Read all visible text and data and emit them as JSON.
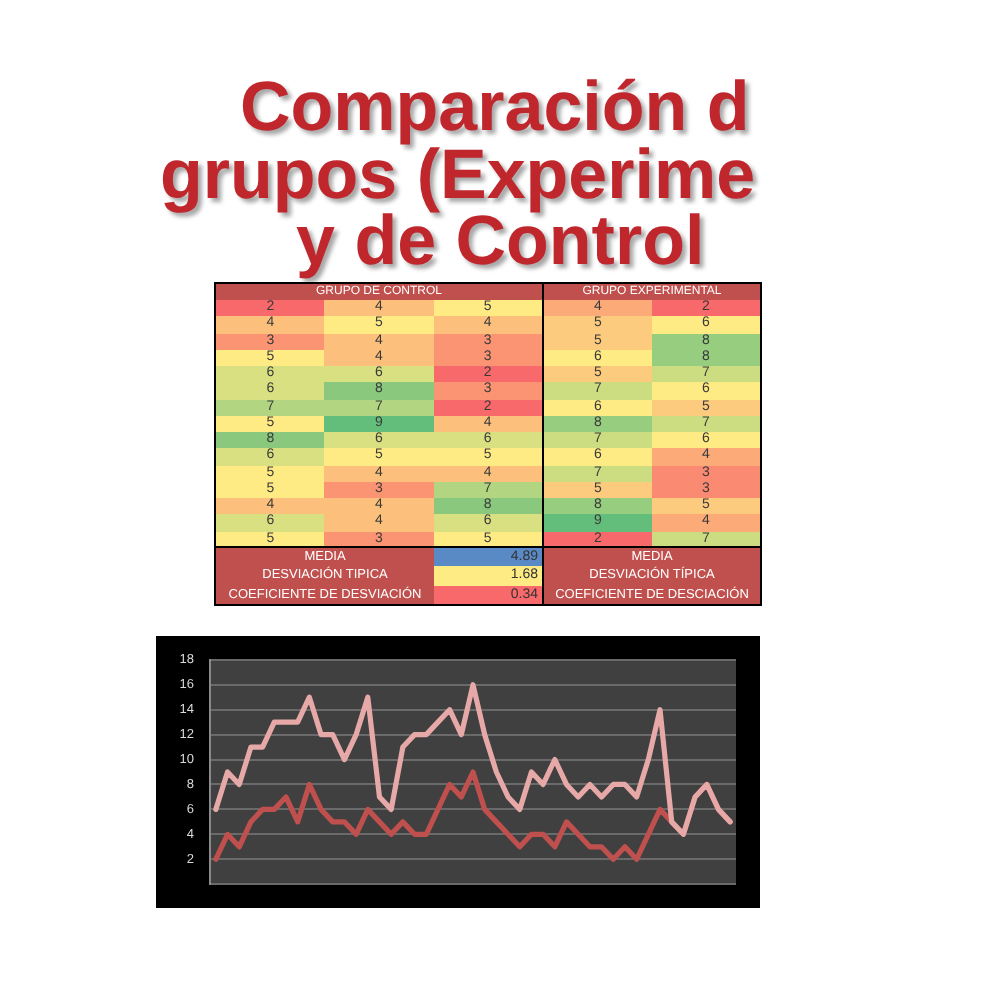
{
  "chart_data": [
    {
      "type": "other",
      "title": "Comparación d\ngrupos (Experime\ny de Control"
    },
    {
      "type": "heatmap",
      "title": "GRUPO DE CONTROL",
      "categories": [
        null,
        null,
        null
      ],
      "y_categories": [
        null,
        null,
        null,
        null,
        null,
        null,
        null,
        null,
        null,
        null,
        null,
        null,
        null,
        null,
        null
      ],
      "cells": [
        [
          2,
          4,
          5
        ],
        [
          4,
          5,
          4
        ],
        [
          3,
          4,
          3
        ],
        [
          5,
          4,
          3
        ],
        [
          6,
          6,
          2
        ],
        [
          6,
          8,
          3
        ],
        [
          7,
          7,
          2
        ],
        [
          5,
          9,
          4
        ],
        [
          8,
          6,
          6
        ],
        [
          6,
          5,
          5
        ],
        [
          5,
          4,
          4
        ],
        [
          5,
          3,
          7
        ],
        [
          4,
          4,
          8
        ],
        [
          6,
          4,
          6
        ],
        [
          5,
          3,
          5
        ]
      ],
      "data_labels": true
    },
    {
      "type": "heatmap",
      "title": "GRUPO EXPERIMENTAL",
      "categories": [
        null,
        null
      ],
      "y_categories": [
        null,
        null,
        null,
        null,
        null,
        null,
        null,
        null,
        null,
        null,
        null,
        null,
        null,
        null,
        null
      ],
      "cells": [
        [
          4,
          2
        ],
        [
          5,
          6
        ],
        [
          5,
          8
        ],
        [
          6,
          8
        ],
        [
          5,
          7
        ],
        [
          7,
          6
        ],
        [
          6,
          5
        ],
        [
          8,
          7
        ],
        [
          7,
          6
        ],
        [
          6,
          4
        ],
        [
          7,
          3
        ],
        [
          5,
          3
        ],
        [
          8,
          5
        ],
        [
          9,
          4
        ],
        [
          2,
          7
        ]
      ],
      "data_labels": true
    },
    {
      "type": "other",
      "categories": [
        "MEDIA",
        "DESVIACIÓN TIPICA",
        "COEFICIENTE DE DESVIACIÓN"
      ],
      "values": [
        4.89,
        1.68,
        0.34
      ],
      "data_labels": true
    },
    {
      "type": "other",
      "categories": [
        "MEDIA",
        "DESVIACIÓN TÍPICA",
        "COEFICIENTE DE DESCIACIÓN"
      ]
    },
    {
      "type": "line",
      "categories": [
        null,
        null,
        null,
        null,
        null,
        null,
        null,
        null,
        null,
        null,
        null,
        null,
        null,
        null,
        null,
        null,
        null,
        null,
        null,
        null,
        null,
        null,
        null,
        null,
        null,
        null,
        null,
        null,
        null,
        null,
        null,
        null,
        null,
        null,
        null,
        null,
        null,
        null,
        null,
        null,
        null,
        null,
        null,
        null,
        null
      ],
      "series": [
        {
          "color": "#c0504d",
          "values": [
            2,
            4,
            3,
            5,
            6,
            6,
            7,
            5,
            8,
            6,
            5,
            5,
            4,
            6,
            5,
            4,
            5,
            4,
            4,
            6,
            8,
            7,
            9,
            6,
            5,
            4,
            3,
            4,
            4,
            3,
            5,
            4,
            3,
            3,
            2,
            3,
            2,
            4,
            6,
            5,
            4,
            7,
            8,
            6,
            5
          ]
        },
        {
          "color": "#e6a9a8",
          "values": [
            6,
            9,
            8,
            11,
            11,
            13,
            13,
            13,
            15,
            12,
            12,
            10,
            12,
            15,
            7,
            6,
            11,
            12,
            12,
            13,
            14,
            12,
            16,
            12,
            9,
            7,
            6,
            9,
            8,
            10,
            8,
            7,
            8,
            7,
            8,
            8,
            7,
            10,
            14,
            5,
            4,
            7,
            8,
            6,
            5
          ]
        }
      ],
      "ylim": [
        0,
        18
      ],
      "yticks": [
        {
          "value": 0,
          "label": null
        },
        2,
        4,
        6,
        8,
        10,
        12,
        14,
        16,
        18
      ],
      "grid": "y",
      "tick_labels": "y"
    }
  ]
}
